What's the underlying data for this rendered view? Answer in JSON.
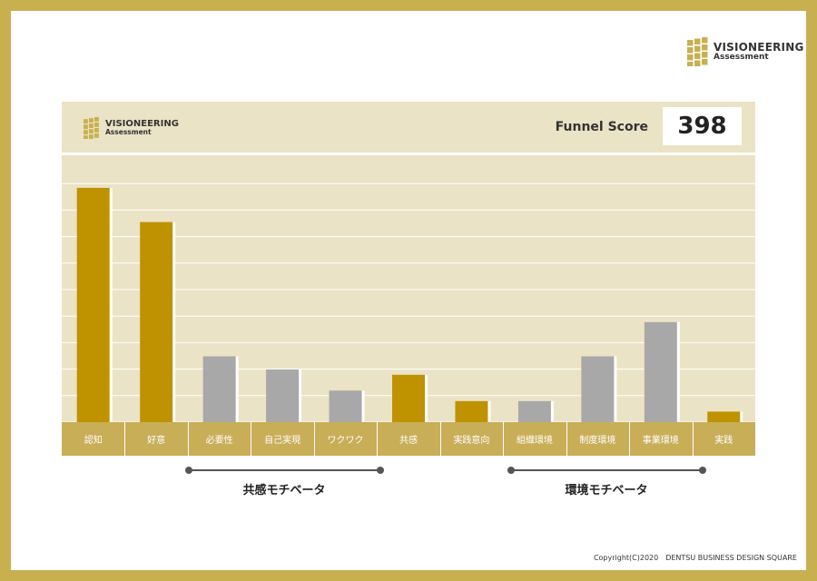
{
  "brand": {
    "name": "VISIONEERING",
    "sub": "Assessment",
    "logo_color": "#c9b04f"
  },
  "score": {
    "label": "Funnel Score",
    "value": "398"
  },
  "chart_data": {
    "type": "bar",
    "categories": [
      "認知",
      "好意",
      "必要性",
      "自己実現",
      "ワクワク",
      "共感",
      "実践意向",
      "組織環境",
      "制度環境",
      "事業環境",
      "実践"
    ],
    "values": [
      89,
      76,
      25,
      20,
      12,
      18,
      8,
      8,
      25,
      38,
      4
    ],
    "bar_colors": [
      "#bf9200",
      "#bf9200",
      "#a8a8a8",
      "#a8a8a8",
      "#a8a8a8",
      "#bf9200",
      "#bf9200",
      "#a8a8a8",
      "#a8a8a8",
      "#a8a8a8",
      "#bf9200"
    ],
    "ylim": [
      0,
      100
    ],
    "grid": true,
    "title": "",
    "xlabel": "",
    "ylabel": ""
  },
  "groups": [
    {
      "label": "共感モチベータ"
    },
    {
      "label": "環境モチベータ"
    }
  ],
  "copyright": "Copyright(C)2020　DENTSU BUSINESS DESIGN SQUARE"
}
